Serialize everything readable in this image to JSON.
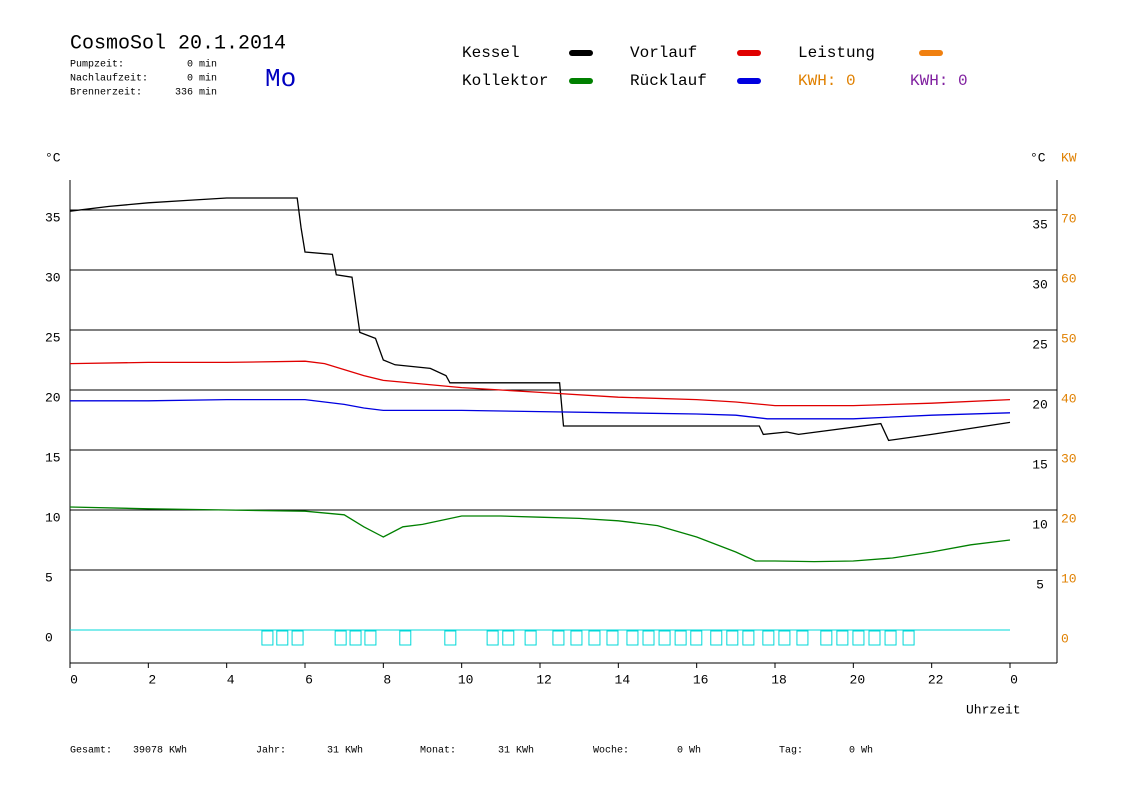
{
  "chart_data": {
    "type": "line",
    "title": "CosmoSol 20.1.2014",
    "day": "Mo",
    "info": [
      {
        "label": "Pumpzeit:",
        "value": "0 min"
      },
      {
        "label": "Nachlaufzeit:",
        "value": "0 min"
      },
      {
        "label": "Brennerzeit:",
        "value": "336 min"
      }
    ],
    "y_label": "°C",
    "y_label_right": "°C",
    "y2_label": "KW",
    "x_label": "Uhrzeit",
    "xlim": [
      0,
      25.2
    ],
    "xticks": [
      0,
      2,
      4,
      6,
      8,
      10,
      12,
      14,
      16,
      18,
      20,
      22,
      {
        "value": 24,
        "label": "0"
      }
    ],
    "ylim": [
      -2.75,
      37.5
    ],
    "yticks": [
      0,
      5,
      10,
      15,
      20,
      25,
      30,
      35
    ],
    "y2lim": [
      -5.5,
      75
    ],
    "y2ticks": [
      0,
      10,
      20,
      30,
      40,
      50,
      60,
      70
    ],
    "grid": true,
    "series": [
      {
        "name": "Kessel",
        "color": "#000000",
        "x": [
          0,
          1,
          2,
          3,
          4,
          5,
          5.8,
          5.9,
          6.0,
          6.7,
          6.8,
          7.2,
          7.4,
          7.8,
          8.0,
          8.3,
          9.2,
          9.6,
          9.7,
          12.5,
          12.6,
          17.6,
          17.7,
          18.3,
          18.6,
          20.7,
          20.9,
          22,
          24
        ],
        "values": [
          34.9,
          35.3,
          35.6,
          35.8,
          36.0,
          36.0,
          36.0,
          33.5,
          31.5,
          31.3,
          29.6,
          29.4,
          24.8,
          24.3,
          22.5,
          22.1,
          21.8,
          21.2,
          20.6,
          20.6,
          17.0,
          17.0,
          16.3,
          16.5,
          16.3,
          17.2,
          15.8,
          16.3,
          17.3
        ]
      },
      {
        "name": "Kollektor",
        "color": "#008000",
        "x": [
          0,
          2,
          4,
          6,
          7,
          7.5,
          8,
          8.5,
          9,
          10,
          11,
          12,
          13,
          14,
          15,
          16,
          17,
          17.5,
          18,
          19,
          20,
          21,
          22,
          23,
          24
        ],
        "values": [
          10.25,
          10.1,
          10.0,
          9.9,
          9.6,
          8.6,
          7.75,
          8.6,
          8.8,
          9.5,
          9.5,
          9.4,
          9.3,
          9.1,
          8.7,
          7.75,
          6.5,
          5.75,
          5.75,
          5.7,
          5.75,
          6.0,
          6.5,
          7.1,
          7.5
        ]
      },
      {
        "name": "Vorlauf",
        "color": "#e00000",
        "x": [
          0,
          2,
          4,
          6,
          6.5,
          7,
          7.5,
          8,
          9,
          10,
          12,
          14,
          16,
          17,
          18,
          20,
          22,
          24
        ],
        "values": [
          22.2,
          22.3,
          22.3,
          22.4,
          22.2,
          21.7,
          21.2,
          20.8,
          20.5,
          20.2,
          19.8,
          19.4,
          19.2,
          19.0,
          18.7,
          18.7,
          18.9,
          19.2
        ]
      },
      {
        "name": "Rücklauf",
        "color": "#0000e0",
        "x": [
          0,
          2,
          4,
          6,
          6.5,
          7,
          7.5,
          8,
          10,
          12,
          14,
          16,
          17,
          17.8,
          20,
          22,
          24
        ],
        "values": [
          19.1,
          19.1,
          19.2,
          19.2,
          19.0,
          18.8,
          18.5,
          18.3,
          18.3,
          18.2,
          18.1,
          18.0,
          17.9,
          17.6,
          17.6,
          17.9,
          18.1
        ]
      },
      {
        "name": "Leistung",
        "color": "#f08010",
        "axis": "y2",
        "x": [],
        "values": []
      }
    ],
    "kwh_labels": [
      "KWH: 0",
      "KWH: 0"
    ],
    "pump": {
      "color": "#00d8d8",
      "x": [
        4.9,
        5.28,
        5.67,
        6.77,
        7.15,
        7.53,
        8.42,
        9.57,
        10.65,
        11.05,
        11.62,
        12.33,
        12.79,
        13.25,
        13.71,
        14.22,
        14.63,
        15.04,
        15.45,
        15.85,
        16.36,
        16.77,
        17.18,
        17.69,
        18.1,
        18.56,
        19.17,
        19.58,
        19.99,
        20.4,
        20.81,
        21.27
      ]
    },
    "totals": [
      {
        "label": "Gesamt:",
        "value": "39078 KWh"
      },
      {
        "label": "Jahr:",
        "value": "31 KWh"
      },
      {
        "label": "Monat:",
        "value": "31 KWh"
      },
      {
        "label": "Woche:",
        "value": "0 Wh"
      },
      {
        "label": "Tag:",
        "value": "0 Wh"
      }
    ]
  }
}
